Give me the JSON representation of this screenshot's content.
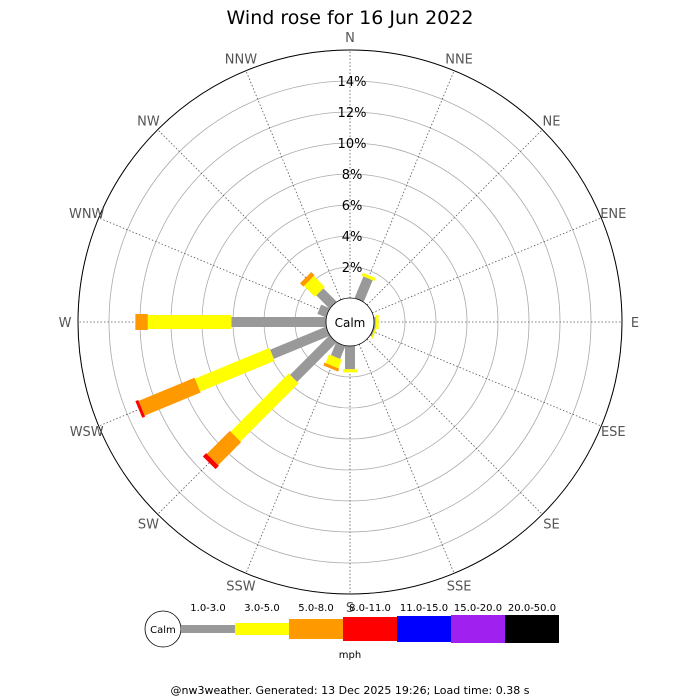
{
  "chart_data": {
    "type": "wind-rose",
    "title": "Wind rose for 16 Jun 2022",
    "calm_label": "Calm",
    "radial_ticks": [
      "2%",
      "4%",
      "6%",
      "8%",
      "10%",
      "12%",
      "14%"
    ],
    "radial_tick_values": [
      2,
      4,
      6,
      8,
      10,
      12,
      14
    ],
    "rmax": 16,
    "directions": [
      "N",
      "NNE",
      "NE",
      "ENE",
      "E",
      "ESE",
      "SE",
      "SSE",
      "S",
      "SSW",
      "SW",
      "WSW",
      "W",
      "WNW",
      "NW",
      "NNW"
    ],
    "speed_bins": [
      "Calm",
      "1.0-3.0",
      "3.0-5.0",
      "5.0-8.0",
      "8.0-11.0",
      "11.0-15.0",
      "15.0-20.0",
      "20.0-50.0"
    ],
    "units": "mph",
    "colors": [
      "#999999",
      "#ffff00",
      "#ff9900",
      "#ff0000",
      "#0000ff",
      "#a020f0",
      "#000000"
    ],
    "series": [
      {
        "name": "1.0-3.0",
        "values": [
          0,
          1.5,
          0,
          0,
          0.1,
          0.1,
          0,
          0,
          1.5,
          0.9,
          3.6,
          3.9,
          6.1,
          0.6,
          1.2,
          0
        ]
      },
      {
        "name": "3.0-5.0",
        "values": [
          0,
          0.2,
          0,
          0,
          0.2,
          0.1,
          0,
          0,
          0.2,
          0.6,
          5.3,
          5.2,
          5.4,
          0,
          1.0,
          0
        ]
      },
      {
        "name": "5.0-8.0",
        "values": [
          0,
          0,
          0,
          0,
          0,
          0,
          0,
          0,
          0,
          0.2,
          2.1,
          3.9,
          0.8,
          0,
          0.3,
          0
        ]
      },
      {
        "name": "8.0-11.0",
        "values": [
          0,
          0,
          0,
          0,
          0,
          0,
          0,
          0,
          0,
          0,
          0.3,
          0.2,
          0,
          0,
          0,
          0
        ]
      }
    ]
  },
  "footer": "@nw3weather. Generated: 13 Dec 2025 19:26; Load time: 0.38 s"
}
